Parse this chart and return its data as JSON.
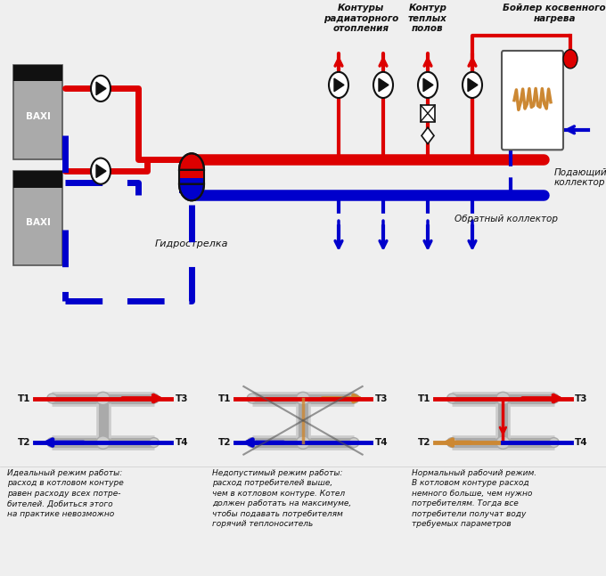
{
  "bg_color": "#efefef",
  "red": "#dd0000",
  "blue": "#0000cc",
  "orange": "#cc8833",
  "gray": "#999999",
  "dark_gray": "#555555",
  "black": "#111111",
  "white": "#ffffff",
  "light_gray": "#cccccc",
  "silver": "#aaaaaa",
  "label_kontury_rad": "Контуры\nрадиаторного\nотопления",
  "label_kontur_tepl": "Контур\nтеплых\nполов",
  "label_bojler": "Бойлер косвенного\nнагрева",
  "label_gidro": "Гидрострелка",
  "label_pod_koll": "Подающий\nколлектор",
  "label_obr_koll": "Обратный коллектор",
  "diagram1_title": "Идеальный режим работы:\nрасход в котловом контуре\nравен расходу всех потре-\nбителей. Добиться этого\nна практике невозможно",
  "diagram2_title": "Недопустимый режим работы:\nрасход потребителей выше,\nчем в котловом контуре. Котел\nдолжен работать на максимуме,\nчтобы подавать потребителям\nгорячий теплоноситель",
  "diagram3_title": "Нормальный рабочий режим.\nВ котловом контуре расход\nнемного больше, чем нужно\nпотребителям. Тогда все\nпотребители получат воду\nтребуемых параметров"
}
